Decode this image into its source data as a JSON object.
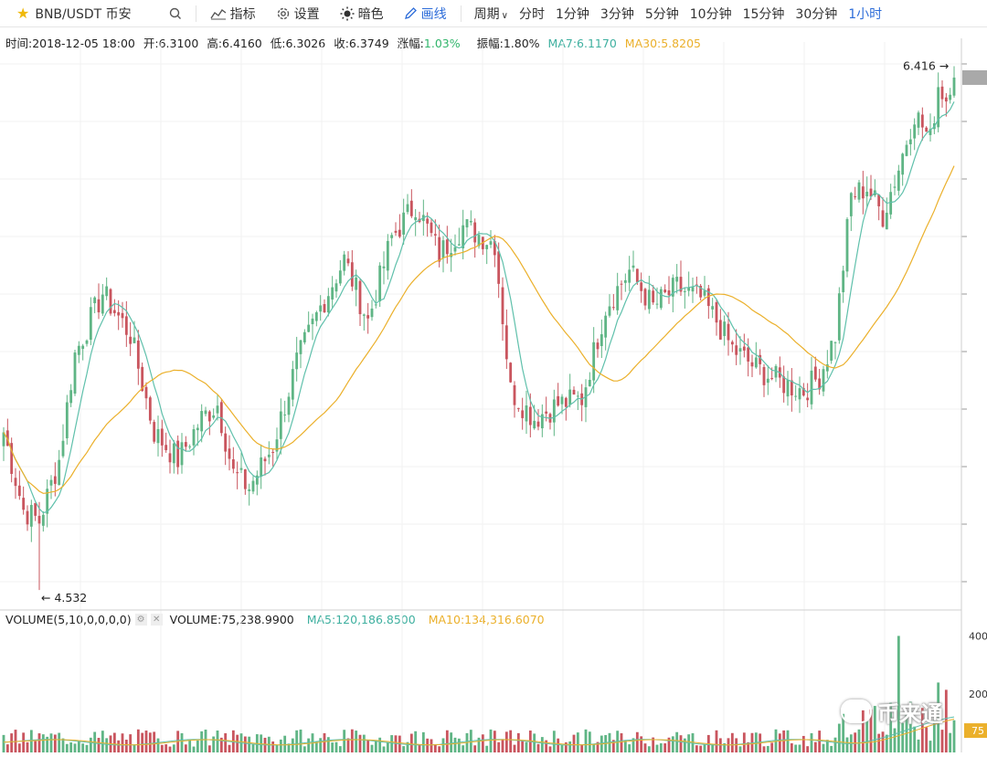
{
  "toolbar": {
    "symbol": "BNB/USDT 币安",
    "indicators": "指标",
    "settings": "设置",
    "dark": "暗色",
    "draw": "画线",
    "period": "周期",
    "periods": [
      "分时",
      "1分钟",
      "3分钟",
      "5分钟",
      "10分钟",
      "15分钟",
      "30分钟",
      "1小时"
    ],
    "selected_period": "1小时"
  },
  "info": {
    "time": "时间:2018-12-05 18:00",
    "open": "开:6.3100",
    "high": "高:6.4160",
    "low": "低:6.3026",
    "close": "收:6.3749",
    "change": "涨幅:1.03%",
    "amplitude": "振幅:1.80%",
    "ma7": "MA7:6.1170",
    "ma30": "MA30:5.8205"
  },
  "volume_info": {
    "label": "VOLUME(5,10,0,0,0,0)",
    "value": "VOLUME:75,238.9900",
    "ma5": "MA5:120,186.8500",
    "ma10": "MA10:134,316.6070"
  },
  "watermark": "币来通",
  "colors": {
    "up": "#5fb585",
    "down": "#c9555e",
    "ma7": "#5fc0ab",
    "ma30": "#ebb02b",
    "accent": "#2c6cd9"
  },
  "chart_data": {
    "type": "candlestick",
    "max_label": "6.416",
    "min_label": "4.532",
    "price_range": [
      4.47,
      6.47
    ],
    "volume_axis": [
      "400",
      "200",
      "75"
    ],
    "volume_range": [
      0,
      420000
    ],
    "anchors": [
      [
        0,
        5.1
      ],
      [
        5,
        4.82
      ],
      [
        9,
        4.78
      ],
      [
        14,
        5.0
      ],
      [
        18,
        5.38
      ],
      [
        25,
        5.6
      ],
      [
        32,
        5.45
      ],
      [
        38,
        5.1
      ],
      [
        44,
        5.0
      ],
      [
        50,
        5.15
      ],
      [
        54,
        5.2
      ],
      [
        58,
        4.95
      ],
      [
        62,
        4.9
      ],
      [
        68,
        5.05
      ],
      [
        74,
        5.35
      ],
      [
        80,
        5.55
      ],
      [
        86,
        5.72
      ],
      [
        92,
        5.5
      ],
      [
        98,
        5.8
      ],
      [
        104,
        5.92
      ],
      [
        110,
        5.74
      ],
      [
        116,
        5.84
      ],
      [
        124,
        5.78
      ],
      [
        128,
        5.25
      ],
      [
        134,
        5.15
      ],
      [
        140,
        5.2
      ],
      [
        146,
        5.22
      ],
      [
        152,
        5.55
      ],
      [
        158,
        5.68
      ],
      [
        164,
        5.55
      ],
      [
        170,
        5.62
      ],
      [
        176,
        5.58
      ],
      [
        180,
        5.5
      ],
      [
        184,
        5.4
      ],
      [
        190,
        5.33
      ],
      [
        196,
        5.28
      ],
      [
        202,
        5.25
      ],
      [
        206,
        5.3
      ],
      [
        210,
        5.45
      ],
      [
        214,
        5.95
      ],
      [
        218,
        5.98
      ],
      [
        222,
        5.88
      ],
      [
        226,
        6.05
      ],
      [
        230,
        6.25
      ],
      [
        234,
        6.15
      ],
      [
        236,
        6.35
      ],
      [
        238,
        6.3
      ],
      [
        240,
        6.42
      ]
    ],
    "last_candle": {
      "open": 6.31,
      "high": 6.416,
      "low": 6.3026,
      "close": 6.3749
    }
  }
}
